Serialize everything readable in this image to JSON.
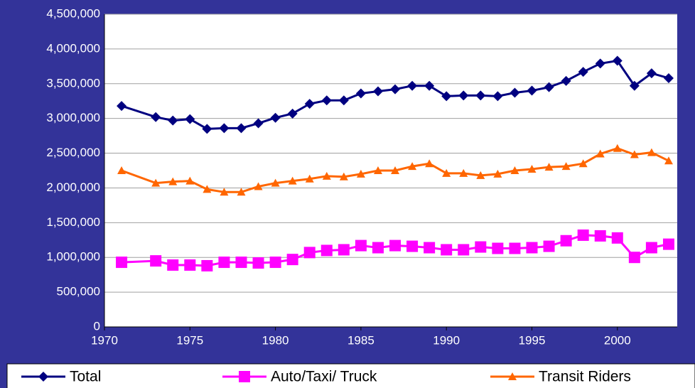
{
  "chart_data": {
    "type": "line",
    "x": [
      1971,
      1973,
      1974,
      1975,
      1976,
      1977,
      1978,
      1979,
      1980,
      1981,
      1982,
      1983,
      1984,
      1985,
      1986,
      1987,
      1988,
      1989,
      1990,
      1991,
      1992,
      1993,
      1994,
      1995,
      1996,
      1997,
      1998,
      1999,
      2000,
      2001,
      2002,
      2003
    ],
    "series": [
      {
        "name": "Total",
        "color": "#000080",
        "marker": "diamond",
        "values": [
          3180000,
          3020000,
          2970000,
          2990000,
          2850000,
          2860000,
          2860000,
          2930000,
          3010000,
          3070000,
          3210000,
          3260000,
          3260000,
          3360000,
          3390000,
          3420000,
          3470000,
          3470000,
          3320000,
          3330000,
          3330000,
          3320000,
          3370000,
          3400000,
          3450000,
          3540000,
          3670000,
          3790000,
          3830000,
          3470000,
          3650000,
          3580000
        ]
      },
      {
        "name": "Auto/Taxi/ Truck",
        "color": "#ff00ff",
        "marker": "square",
        "values": [
          930000,
          950000,
          890000,
          890000,
          880000,
          930000,
          930000,
          920000,
          930000,
          970000,
          1070000,
          1100000,
          1110000,
          1170000,
          1140000,
          1170000,
          1160000,
          1140000,
          1110000,
          1110000,
          1150000,
          1130000,
          1130000,
          1140000,
          1160000,
          1240000,
          1320000,
          1310000,
          1280000,
          1000000,
          1140000,
          1190000
        ]
      },
      {
        "name": "Transit Riders",
        "color": "#ff6600",
        "marker": "triangle",
        "values": [
          2250000,
          2070000,
          2090000,
          2100000,
          1980000,
          1940000,
          1940000,
          2020000,
          2070000,
          2100000,
          2130000,
          2170000,
          2160000,
          2200000,
          2250000,
          2250000,
          2310000,
          2350000,
          2210000,
          2210000,
          2180000,
          2200000,
          2250000,
          2270000,
          2300000,
          2310000,
          2350000,
          2490000,
          2570000,
          2480000,
          2510000,
          2390000
        ]
      }
    ],
    "xlim": [
      1970,
      2003.5
    ],
    "xticks": [
      1970,
      1975,
      1980,
      1985,
      1990,
      1995,
      2000
    ],
    "ylim": [
      0,
      4500000
    ],
    "yticks": [
      0,
      {
        "value": 500000,
        "label": "500,000"
      },
      {
        "value": 1000000,
        "label": "1,000,000"
      },
      {
        "value": 1500000,
        "label": "1,500,000"
      },
      {
        "value": 2000000,
        "label": "2,000,000"
      },
      {
        "value": 2500000,
        "label": "2,500,000"
      },
      {
        "value": 3000000,
        "label": "3,000,000"
      },
      {
        "value": 3500000,
        "label": "3,500,000"
      },
      {
        "value": 4000000,
        "label": "4,000,000"
      },
      {
        "value": 4500000,
        "label": "4,500,000"
      }
    ],
    "grid": true,
    "legend": "bottom"
  }
}
